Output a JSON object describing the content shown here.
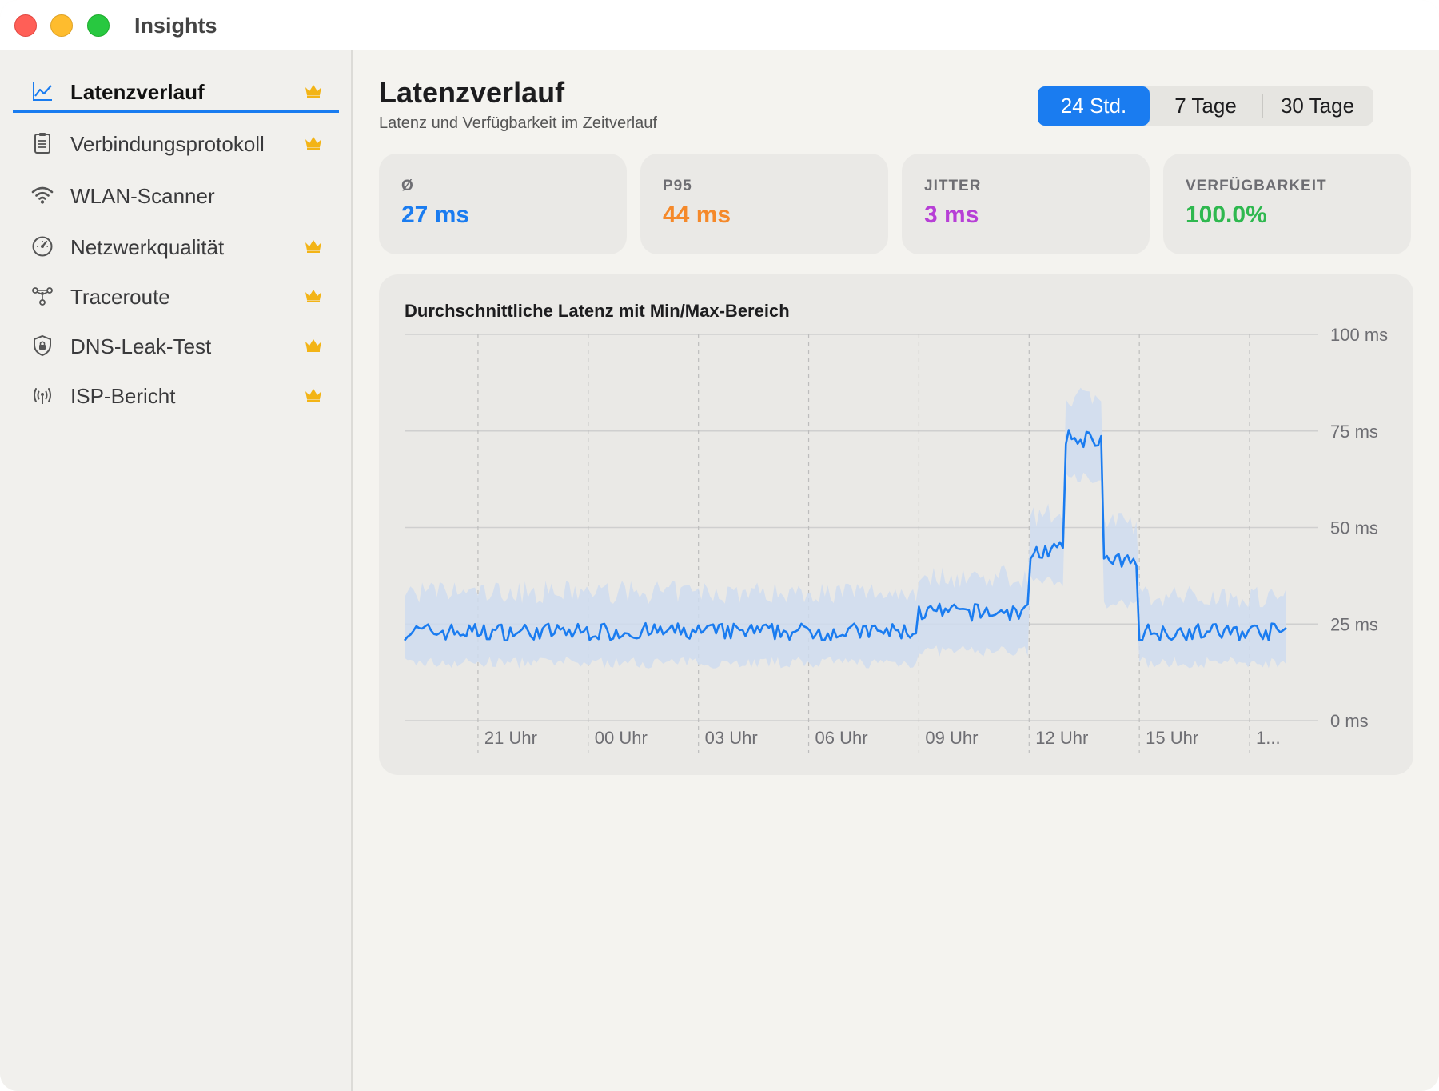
{
  "window": {
    "title": "Insights"
  },
  "sidebar": {
    "items": [
      {
        "label": "Latenzverlauf",
        "icon": "line-chart-icon",
        "premium": true,
        "active": true
      },
      {
        "label": "Verbindungsprotokoll",
        "icon": "clipboard-list-icon",
        "premium": true,
        "active": false
      },
      {
        "label": "WLAN-Scanner",
        "icon": "wifi-icon",
        "premium": false,
        "active": false
      },
      {
        "label": "Netzwerkqualität",
        "icon": "gauge-icon",
        "premium": true,
        "active": false
      },
      {
        "label": "Traceroute",
        "icon": "network-nodes-icon",
        "premium": true,
        "active": false
      },
      {
        "label": "DNS-Leak-Test",
        "icon": "shield-lock-icon",
        "premium": true,
        "active": false
      },
      {
        "label": "ISP-Bericht",
        "icon": "antenna-icon",
        "premium": true,
        "active": false
      }
    ]
  },
  "header": {
    "title": "Latenzverlauf",
    "subtitle": "Latenz und Verfügbarkeit im Zeitverlauf"
  },
  "range_selector": {
    "options": [
      "24 Std.",
      "7 Tage",
      "30 Tage"
    ],
    "selected": "24 Std."
  },
  "stats": [
    {
      "label": "Ø",
      "value": "27 ms",
      "color": "#1a7cf0"
    },
    {
      "label": "P95",
      "value": "44 ms",
      "color": "#f5892a"
    },
    {
      "label": "JITTER",
      "value": "3 ms",
      "color": "#b73fd6"
    },
    {
      "label": "VERFÜGBARKEIT",
      "value": "100.0%",
      "color": "#2fb84f"
    }
  ],
  "colors": {
    "accent": "#1a7cf0",
    "band": "#cfdcee",
    "crown": "#f3b416"
  },
  "chart_data": {
    "type": "line",
    "title": "Durchschnittliche Latenz mit Min/Max-Bereich",
    "series_color": "#1a7cf0",
    "band_color": "#cfdcee",
    "ylim": [
      0,
      100
    ],
    "y_ticks": [
      0,
      25,
      50,
      75,
      100
    ],
    "y_tick_labels": [
      "0 ms",
      "25 ms",
      "50 ms",
      "75 ms",
      "100 ms"
    ],
    "x_range_hours": [
      0,
      24
    ],
    "x_ticks": [
      2,
      5,
      8,
      11,
      14,
      17,
      20,
      23
    ],
    "x_tick_labels": [
      "21 Uhr",
      "00 Uhr",
      "03 Uhr",
      "06 Uhr",
      "09 Uhr",
      "12 Uhr",
      "15 Uhr",
      "1..."
    ],
    "segments": [
      {
        "from": 0,
        "to": 14,
        "avg": 23,
        "min": 15,
        "max": 32
      },
      {
        "from": 14,
        "to": 17,
        "avg": 28,
        "min": 18,
        "max": 36
      },
      {
        "from": 17,
        "to": 18,
        "avg": 44,
        "min": 36,
        "max": 52
      },
      {
        "from": 18,
        "to": 19,
        "avg": 73,
        "min": 63,
        "max": 83
      },
      {
        "from": 19,
        "to": 20,
        "avg": 41,
        "min": 30,
        "max": 50
      },
      {
        "from": 20,
        "to": 24,
        "avg": 23,
        "min": 15,
        "max": 31
      }
    ]
  }
}
